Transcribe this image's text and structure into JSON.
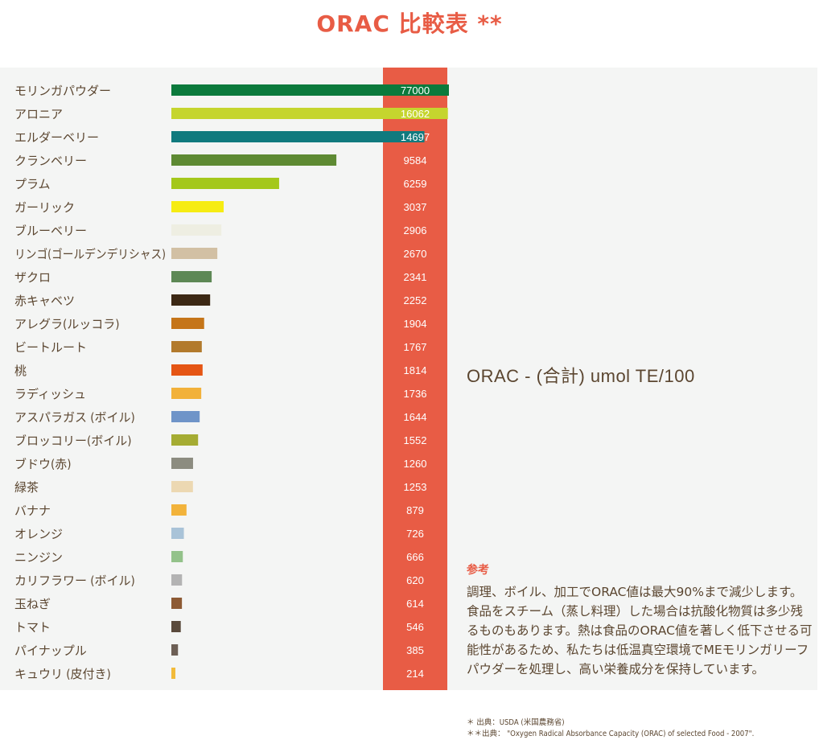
{
  "title": "ORAC 比較表 **",
  "colors": {
    "accent": "#e85c45",
    "text": "#5b4630",
    "value_text": "#ffffff",
    "panel_bg": "#f4f5f4"
  },
  "chart_data": {
    "type": "bar",
    "orientation": "horizontal",
    "metric_label": "ORAC - (合計) umol TE/100",
    "categories": [
      "モリンガパウダー",
      "アロニア",
      "エルダーベリー",
      "クランベリー",
      "プラム",
      "ガーリック",
      "ブルーベリー",
      "リンゴ(ゴールデンデリシャス)",
      "ザクロ",
      "赤キャベツ",
      "アレグラ(ルッコラ)",
      "ビートルート",
      "桃",
      "ラディッシュ",
      "アスパラガス (ボイル)",
      "ブロッコリー(ボイル)",
      "ブドウ(赤)",
      "緑茶",
      "バナナ",
      "オレンジ",
      "ニンジン",
      "カリフラワー (ボイル)",
      "玉ねぎ",
      "トマト",
      "パイナップル",
      "キュウリ (皮付き)"
    ],
    "values": [
      77000,
      16062,
      14697,
      9584,
      6259,
      3037,
      2906,
      2670,
      2341,
      2252,
      1904,
      1767,
      1814,
      1736,
      1644,
      1552,
      1260,
      1253,
      879,
      726,
      666,
      620,
      614,
      546,
      385,
      214
    ],
    "bar_colors": [
      "#0b7a3c",
      "#c5d52e",
      "#107a7e",
      "#5e8a33",
      "#a4c81b",
      "#f6ec13",
      "#eeeee2",
      "#d2c0a4",
      "#5d8855",
      "#3c2814",
      "#c57519",
      "#b27a2c",
      "#e55514",
      "#f2b13a",
      "#6f94c8",
      "#a5ac33",
      "#8c8c80",
      "#ecd8b2",
      "#f2b33b",
      "#a9c3d8",
      "#93c28a",
      "#b3b3b3",
      "#8d5a34",
      "#5a4a3c",
      "#6d5f55",
      "#f2bb3b"
    ]
  },
  "reference": {
    "heading": "参考",
    "body": "調理、ボイル、加工でORAC値は最大90%まで減少します。食品をスチーム（蒸し料理）した場合は抗酸化物質は多少残るものもあります。熱は食品のORAC値を著しく低下させる可能性があるため、私たちは低温真空環境でMEモリンガリーフパウダーを処理し、高い栄養成分を保持しています。"
  },
  "sources": [
    "＊ 出典：USDA (米国農務省)",
    "＊＊出典： \"Oxygen Radical Absorbance Capacity (ORAC) of selected Food - 2007\"."
  ]
}
